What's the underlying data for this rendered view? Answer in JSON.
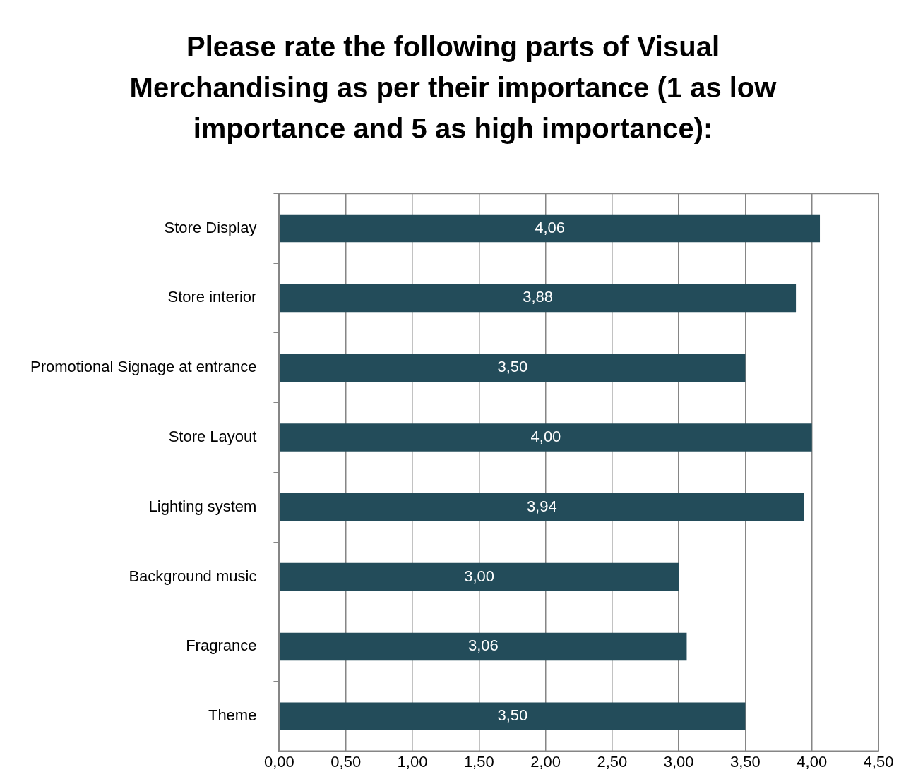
{
  "chart_data": {
    "type": "bar",
    "orientation": "horizontal",
    "title": "Please rate the following parts of Visual Merchandising as per their importance (1 as low importance and 5 as high importance):",
    "categories": [
      "Store Display",
      "Store interior",
      "Promotional Signage at entrance",
      "Store Layout",
      "Lighting system",
      "Background music",
      "Fragrance",
      "Theme"
    ],
    "values": [
      4.06,
      3.88,
      3.5,
      4.0,
      3.94,
      3.0,
      3.06,
      3.5
    ],
    "value_labels": [
      "4,06",
      "3,88",
      "3,50",
      "4,00",
      "3,94",
      "3,00",
      "3,06",
      "3,50"
    ],
    "color": "#234c5a",
    "xlim": [
      0,
      4.5
    ],
    "xticks": [
      {
        "value": 0,
        "label": "0,00"
      },
      {
        "value": 0.5,
        "label": "0,50"
      },
      {
        "value": 1,
        "label": "1,00"
      },
      {
        "value": 1.5,
        "label": "1,50"
      },
      {
        "value": 2,
        "label": "2,00"
      },
      {
        "value": 2.5,
        "label": "2,50"
      },
      {
        "value": 3,
        "label": "3,00"
      },
      {
        "value": 3.5,
        "label": "3,50"
      },
      {
        "value": 4,
        "label": "4,00"
      },
      {
        "value": 4.5,
        "label": "4,50"
      }
    ],
    "grid": "x",
    "legend": false
  }
}
